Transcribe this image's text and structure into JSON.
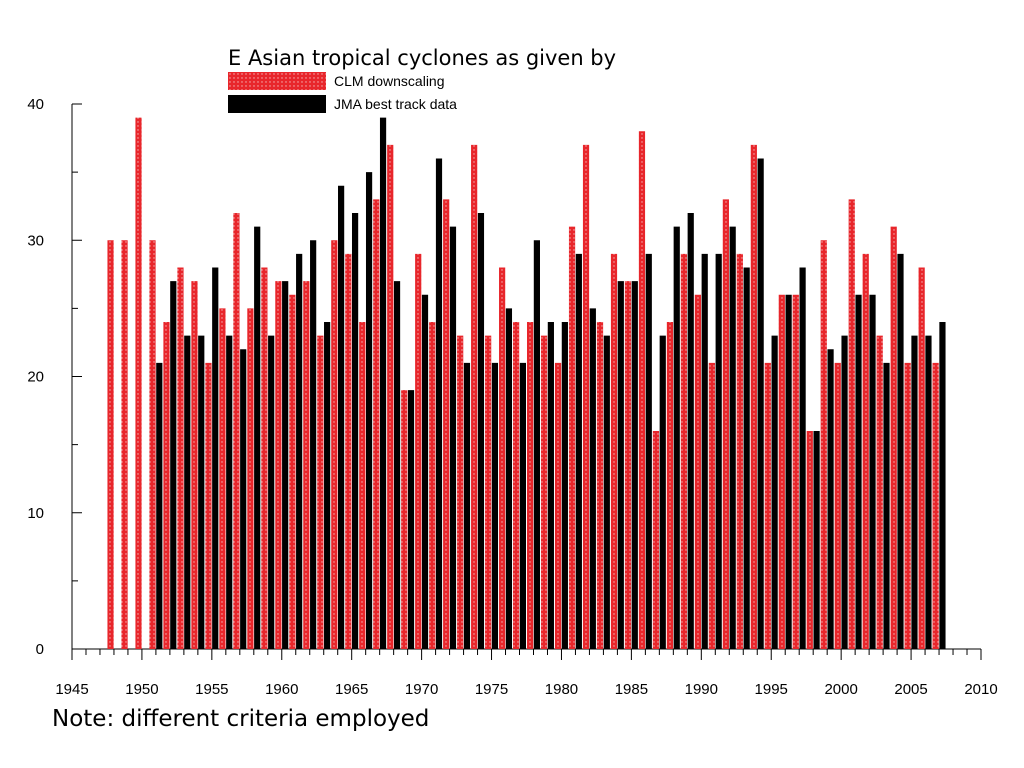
{
  "chart_data": {
    "type": "bar",
    "title": "E Asian tropical cyclones as given by",
    "note": "Note: different criteria employed",
    "xlim": [
      1945,
      2010
    ],
    "ylim": [
      0,
      40
    ],
    "x_ticks": [
      1945,
      1950,
      1955,
      1960,
      1965,
      1970,
      1975,
      1980,
      1985,
      1990,
      1995,
      2000,
      2005,
      2010
    ],
    "y_ticks": [
      0,
      10,
      20,
      30,
      40
    ],
    "series": [
      {
        "name": "CLM downscaling",
        "color": "#e8262b",
        "pattern": "dotted",
        "x": [
          1948,
          1949,
          1950,
          1951,
          1952,
          1953,
          1954,
          1955,
          1956,
          1957,
          1958,
          1959,
          1960,
          1961,
          1962,
          1963,
          1964,
          1965,
          1966,
          1967,
          1968,
          1969,
          1970,
          1971,
          1972,
          1973,
          1974,
          1975,
          1976,
          1977,
          1978,
          1979,
          1980,
          1981,
          1982,
          1983,
          1984,
          1985,
          1986,
          1987,
          1988,
          1989,
          1990,
          1991,
          1992,
          1993,
          1994,
          1995,
          1996,
          1997,
          1998,
          1999,
          2000,
          2001,
          2002,
          2003,
          2004,
          2005,
          2006,
          2007
        ],
        "values": [
          30,
          30,
          39,
          30,
          24,
          28,
          27,
          21,
          25,
          32,
          25,
          28,
          27,
          26,
          27,
          23,
          30,
          29,
          24,
          33,
          37,
          19,
          29,
          24,
          33,
          23,
          37,
          23,
          28,
          24,
          24,
          23,
          21,
          31,
          37,
          24,
          29,
          27,
          38,
          16,
          24,
          29,
          26,
          21,
          33,
          29,
          37,
          21,
          26,
          26,
          16,
          30,
          21,
          33,
          29,
          23,
          31,
          21,
          28,
          21
        ]
      },
      {
        "name": "JMA best track data",
        "color": "#000000",
        "pattern": "solid",
        "x": [
          1951,
          1952,
          1953,
          1954,
          1955,
          1956,
          1957,
          1958,
          1959,
          1960,
          1961,
          1962,
          1963,
          1964,
          1965,
          1966,
          1967,
          1968,
          1969,
          1970,
          1971,
          1972,
          1973,
          1974,
          1975,
          1976,
          1977,
          1978,
          1979,
          1980,
          1981,
          1982,
          1983,
          1984,
          1985,
          1986,
          1987,
          1988,
          1989,
          1990,
          1991,
          1992,
          1993,
          1994,
          1995,
          1996,
          1997,
          1998,
          1999,
          2000,
          2001,
          2002,
          2003,
          2004,
          2005,
          2006,
          2007
        ],
        "values": [
          21,
          27,
          23,
          23,
          28,
          23,
          22,
          31,
          23,
          27,
          29,
          30,
          24,
          34,
          32,
          35,
          39,
          27,
          19,
          26,
          36,
          31,
          21,
          32,
          21,
          25,
          21,
          30,
          24,
          24,
          29,
          25,
          23,
          27,
          27,
          29,
          23,
          31,
          32,
          29,
          29,
          31,
          28,
          36,
          23,
          26,
          28,
          16,
          22,
          23,
          26,
          26,
          21,
          29,
          23,
          23,
          24
        ]
      }
    ]
  }
}
